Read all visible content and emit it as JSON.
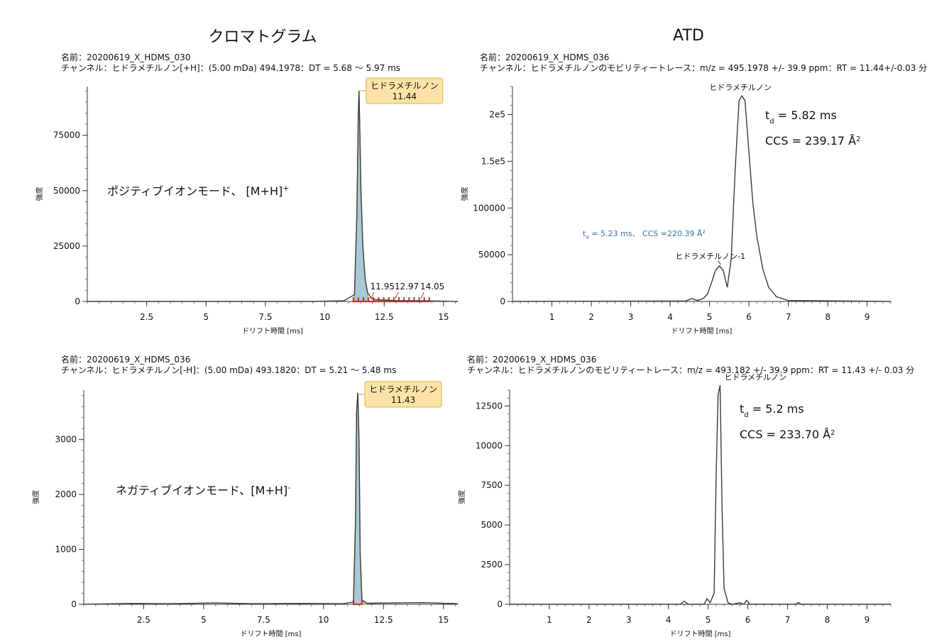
{
  "headings": {
    "left": "クロマトグラム",
    "right": "ATD"
  },
  "chart_data": [
    {
      "id": "p1",
      "type": "line",
      "name_line": "名前：20200619_X_HDMS_030",
      "channel_line": "チャンネル：ヒドラメチルノン[+H]：(5.00 mDa) 494.1978：DT = 5.68 〜 5.97 ms",
      "xlabel": "ドリフト時間 [ms]",
      "ylabel": "強度",
      "xlim": [
        0,
        15.6
      ],
      "ylim": [
        0,
        97000
      ],
      "xticks": [
        2.5,
        5,
        7.5,
        10,
        12.5,
        15
      ],
      "xtick_labels": [
        "2.5",
        "5",
        "7.5",
        "10",
        "12.5",
        "15"
      ],
      "yticks": [
        0,
        25000,
        50000,
        75000
      ],
      "ytick_labels": [
        "0",
        "25000",
        "50000",
        "75000"
      ],
      "filled_peak": true,
      "x": [
        0,
        9.5,
        10.8,
        11.25,
        11.35,
        11.41,
        11.44,
        11.47,
        11.52,
        11.6,
        11.7,
        11.8,
        11.95,
        12.1,
        12.5,
        13.0,
        14.05,
        15.6
      ],
      "y": [
        0,
        0,
        300,
        3000,
        40000,
        85000,
        95000,
        80000,
        50000,
        25000,
        10000,
        4000,
        1500,
        800,
        600,
        400,
        300,
        0
      ],
      "apex_label": {
        "name": "ヒドラメチルノン",
        "value": "11.44",
        "x": 11.44
      },
      "minor_peaks": [
        {
          "label": "11.95",
          "x": 11.95,
          "y": 1500
        },
        {
          "label": "12.97",
          "x": 12.97,
          "y": 600
        },
        {
          "label": "14.05",
          "x": 14.05,
          "y": 500
        }
      ],
      "annotation": {
        "text": "ポジティブイオンモード、 [M+H]",
        "sup": "+"
      }
    },
    {
      "id": "p2",
      "type": "line",
      "name_line": "名前：20200619_X_HDMS_036",
      "channel_line": "チャンネル：ヒドラメチルノンのモビリティートレース：m/z = 495.1978 +/- 39.9 ppm：RT = 11.44+/-0.03 分",
      "xlabel": "ドリフト時間 [ms]",
      "ylabel": "強度",
      "xlim": [
        0,
        9.6
      ],
      "ylim": [
        0,
        230000
      ],
      "xticks": [
        1,
        2,
        3,
        4,
        5,
        6,
        7,
        8,
        9
      ],
      "xtick_labels": [
        "1",
        "2",
        "3",
        "4",
        "5",
        "6",
        "7",
        "8",
        "9"
      ],
      "yticks": [
        0,
        50000,
        100000,
        150000,
        200000
      ],
      "ytick_labels": [
        "0",
        "50000",
        "100000",
        "1.5e5",
        "2e5"
      ],
      "x": [
        0,
        4.4,
        4.55,
        4.7,
        4.85,
        4.95,
        5.05,
        5.15,
        5.25,
        5.35,
        5.45,
        5.55,
        5.65,
        5.75,
        5.82,
        5.9,
        6.0,
        6.1,
        6.2,
        6.35,
        6.5,
        6.7,
        7.0,
        9.6
      ],
      "y": [
        0,
        500,
        3000,
        1000,
        3500,
        8000,
        20000,
        33000,
        38000,
        33000,
        15000,
        45000,
        140000,
        215000,
        220000,
        215000,
        160000,
        105000,
        70000,
        35000,
        15000,
        5000,
        1000,
        0
      ],
      "peak_labels": [
        {
          "text": "ヒドラメチルノン",
          "x": 5.82,
          "y": 220000
        },
        {
          "text": "ヒドラメチルノン-1",
          "x": 5.25,
          "y": 38000
        }
      ],
      "callout_main": {
        "td": "5.82 ms",
        "ccs": "CCS = 239.17 Å"
      },
      "callout_minor": {
        "text": "= 5.23 ms、 CCS =220.39 Å",
        "color": "#3a6ea5"
      }
    },
    {
      "id": "p3",
      "type": "line",
      "name_line": "名前：20200619_X_HDMS_036",
      "channel_line": "チャンネル：ヒドラメチルノン[-H]：(5.00 mDa) 493.1820：DT = 5.21 〜 5.48 ms",
      "xlabel": "ドリフト時間 [ms]",
      "ylabel": "強度",
      "xlim": [
        0,
        15.6
      ],
      "ylim": [
        0,
        3900
      ],
      "xticks": [
        2.5,
        5,
        7.5,
        10,
        12.5,
        15
      ],
      "xtick_labels": [
        "2.5",
        "5",
        "7.5",
        "10",
        "12.5",
        "15"
      ],
      "yticks": [
        0,
        1000,
        2000,
        3000
      ],
      "ytick_labels": [
        "0",
        "1000",
        "2000",
        "3000"
      ],
      "filled_peak": true,
      "x": [
        0,
        2.0,
        3.5,
        5.5,
        7.0,
        9.0,
        10.8,
        11.25,
        11.33,
        11.38,
        11.43,
        11.48,
        11.53,
        11.6,
        11.8,
        14.2,
        15.6
      ],
      "y": [
        0,
        15,
        10,
        25,
        10,
        15,
        10,
        40,
        1500,
        3500,
        3850,
        3000,
        900,
        80,
        20,
        30,
        10
      ],
      "apex_label": {
        "name": "ヒドラメチルノン",
        "value": "11.43",
        "x": 11.43
      },
      "annotation": {
        "text": "ネガティブイオンモード、[M+H]",
        "sup": "-"
      }
    },
    {
      "id": "p4",
      "type": "line",
      "name_line": "名前：20200619_X_HDMS_036",
      "channel_line": "チャンネル：ヒドラメチルノンのモビリティートレース：m/z = 493.182 +/- 39.9 ppm：RT = 11.43 +/- 0.03 分",
      "xlabel": "ドリフト時間 [ms]",
      "ylabel": "強度",
      "xlim": [
        0,
        9.6
      ],
      "ylim": [
        0,
        13500
      ],
      "xticks": [
        1,
        2,
        3,
        4,
        5,
        6,
        7,
        8,
        9
      ],
      "xtick_labels": [
        "1",
        "2",
        "3",
        "4",
        "5",
        "6",
        "7",
        "8",
        "9"
      ],
      "yticks": [
        0,
        2500,
        5000,
        7500,
        10000,
        12500
      ],
      "ytick_labels": [
        "0",
        "2500",
        "5000",
        "7500",
        "10000",
        "12500"
      ],
      "x": [
        0,
        4.3,
        4.4,
        4.5,
        4.9,
        4.97,
        5.05,
        5.15,
        5.2,
        5.25,
        5.3,
        5.35,
        5.4,
        5.5,
        5.6,
        5.8,
        5.9,
        5.97,
        6.05,
        7.2,
        7.27,
        7.34,
        9.6
      ],
      "y": [
        0,
        0,
        200,
        0,
        0,
        350,
        100,
        700,
        8000,
        13200,
        13800,
        6000,
        1000,
        100,
        0,
        100,
        0,
        250,
        0,
        0,
        120,
        0,
        0
      ],
      "peak_labels": [
        {
          "text": "ヒドラメチルノン",
          "x": 5.3,
          "y": 13800
        }
      ],
      "callout_main": {
        "td": "5.2 ms",
        "ccs": "CCS = 233.70 Å"
      }
    }
  ]
}
